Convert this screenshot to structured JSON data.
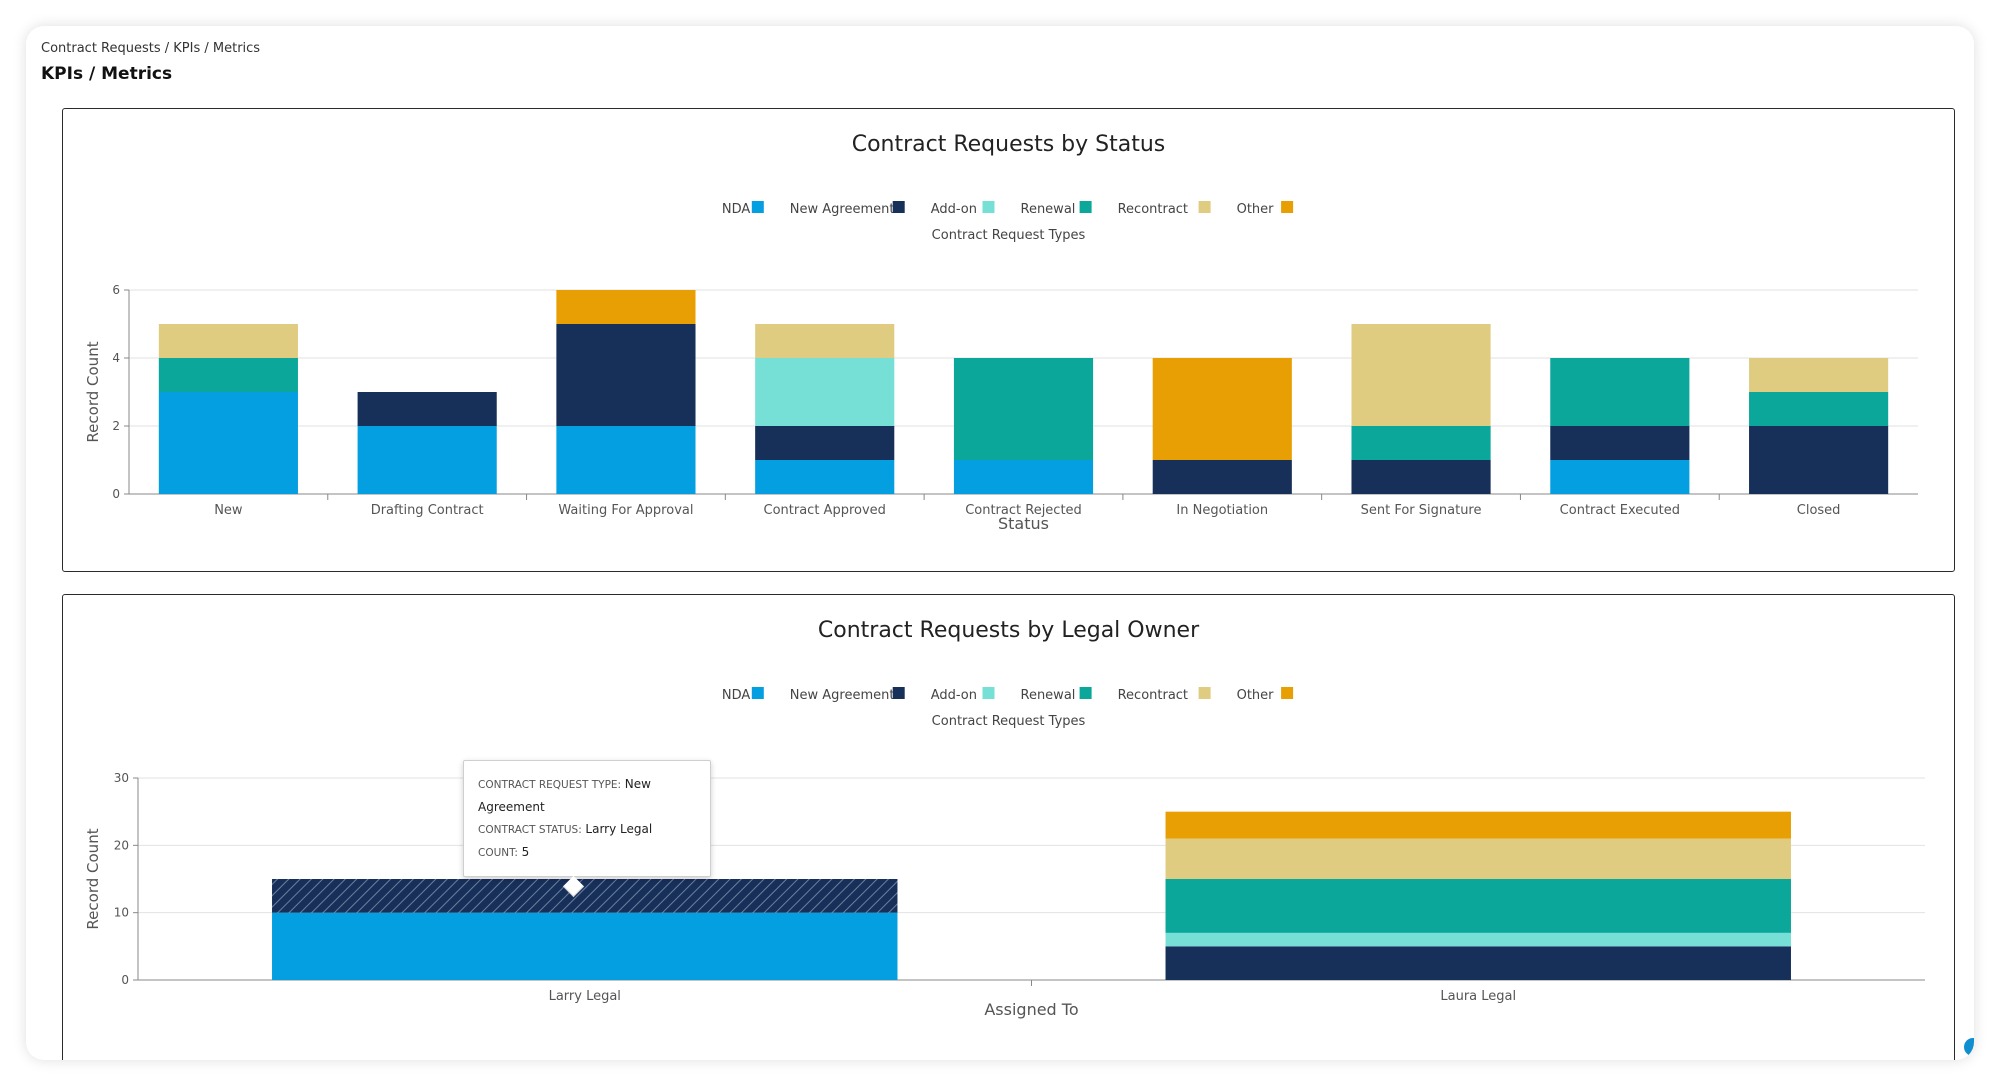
{
  "breadcrumb": "Contract Requests / KPIs / Metrics",
  "page_title": "KPIs / Metrics",
  "colors": {
    "NDA": "#049fe0",
    "New Agreement": "#17305a",
    "Add-on": "#76dfd6",
    "Renewal": "#0ba79a",
    "Recontract": "#e0cc80",
    "Other": "#e89f03"
  },
  "tooltip": {
    "type_key": "CONTRACT REQUEST TYPE:",
    "type_val": "New Agreement",
    "status_key": "CONTRACT STATUS:",
    "status_val": "Larry Legal",
    "count_key": "COUNT:",
    "count_val": "5"
  },
  "chart_data": [
    {
      "type": "bar",
      "stacked": true,
      "title": "Contract Requests by Status",
      "legend_title": "Contract Request Types",
      "legend_position": "top-center",
      "xlabel": "Status",
      "ylabel": "Record Count",
      "ylim": [
        0,
        6
      ],
      "yticks": [
        "0",
        "2",
        "4",
        "6"
      ],
      "grid": true,
      "categories": [
        "New",
        "Drafting Contract",
        "Waiting For Approval",
        "Contract Approved",
        "Contract Rejected",
        "In Negotiation",
        "Sent For Signature",
        "Contract Executed",
        "Closed"
      ],
      "series": [
        {
          "name": "NDA",
          "values": [
            3,
            2,
            2,
            1,
            1,
            0,
            0,
            1,
            0
          ]
        },
        {
          "name": "New Agreement",
          "values": [
            0,
            1,
            3,
            1,
            0,
            1,
            1,
            1,
            2
          ]
        },
        {
          "name": "Add-on",
          "values": [
            0,
            0,
            0,
            2,
            0,
            0,
            0,
            0,
            0
          ]
        },
        {
          "name": "Renewal",
          "values": [
            1,
            0,
            0,
            0,
            3,
            0,
            1,
            2,
            1
          ]
        },
        {
          "name": "Recontract",
          "values": [
            1,
            0,
            0,
            1,
            0,
            0,
            3,
            0,
            1
          ]
        },
        {
          "name": "Other",
          "values": [
            0,
            0,
            1,
            0,
            0,
            3,
            0,
            0,
            0
          ]
        }
      ]
    },
    {
      "type": "bar",
      "stacked": true,
      "title": "Contract Requests by Legal Owner",
      "legend_title": "Contract Request Types",
      "legend_position": "top-center",
      "xlabel": "Assigned To",
      "ylabel": "Record Count",
      "ylim": [
        0,
        30
      ],
      "yticks": [
        "0",
        "10",
        "20",
        "30"
      ],
      "grid": true,
      "categories": [
        "Larry Legal",
        "Laura Legal"
      ],
      "series": [
        {
          "name": "NDA",
          "values": [
            10,
            0
          ]
        },
        {
          "name": "New Agreement",
          "values": [
            5,
            5
          ]
        },
        {
          "name": "Add-on",
          "values": [
            0,
            2
          ]
        },
        {
          "name": "Renewal",
          "values": [
            0,
            8
          ]
        },
        {
          "name": "Recontract",
          "values": [
            0,
            6
          ]
        },
        {
          "name": "Other",
          "values": [
            0,
            4
          ]
        }
      ]
    }
  ]
}
